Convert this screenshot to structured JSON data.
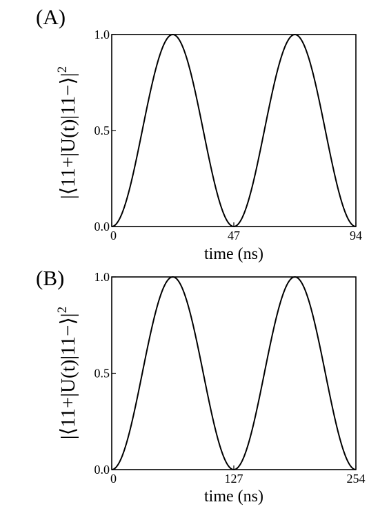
{
  "chart_data": [
    {
      "type": "line",
      "panel_label": "(A)",
      "xlabel": "time (ns)",
      "ylabel": "|⟨11+|U(t)|11−⟩|",
      "ylabel_exponent": "2",
      "xlim": [
        0,
        94
      ],
      "ylim": [
        0.0,
        1.0
      ],
      "x_ticks": [
        "0",
        "47",
        "94"
      ],
      "x_tick_values": [
        0,
        47,
        94
      ],
      "y_ticks": [
        "0.0",
        "0.5",
        "1.0"
      ],
      "y_tick_values": [
        0.0,
        0.5,
        1.0
      ],
      "grid": false,
      "series": [
        {
          "function": "sin^2(2*pi*t/T)",
          "period_T": 94,
          "x": [
            0,
            11.75,
            23.5,
            35.25,
            47,
            58.75,
            70.5,
            82.25,
            94
          ],
          "y": [
            0.0,
            0.5,
            1.0,
            0.5,
            0.0,
            0.5,
            1.0,
            0.5,
            0.0
          ]
        }
      ]
    },
    {
      "type": "line",
      "panel_label": "(B)",
      "xlabel": "time (ns)",
      "ylabel": "|⟨11+|U(t)|11−⟩|",
      "ylabel_exponent": "2",
      "xlim": [
        0,
        254
      ],
      "ylim": [
        0.0,
        1.0
      ],
      "x_ticks": [
        "0",
        "127",
        "254"
      ],
      "x_tick_values": [
        0,
        127,
        254
      ],
      "y_ticks": [
        "0.0",
        "0.5",
        "1.0"
      ],
      "y_tick_values": [
        0.0,
        0.5,
        1.0
      ],
      "grid": false,
      "series": [
        {
          "function": "sin^2(2*pi*t/T)",
          "period_T": 254,
          "x": [
            0,
            31.75,
            63.5,
            95.25,
            127,
            158.75,
            190.5,
            222.25,
            254
          ],
          "y": [
            0.0,
            0.5,
            1.0,
            0.5,
            0.0,
            0.5,
            1.0,
            0.5,
            0.0
          ]
        }
      ]
    }
  ]
}
